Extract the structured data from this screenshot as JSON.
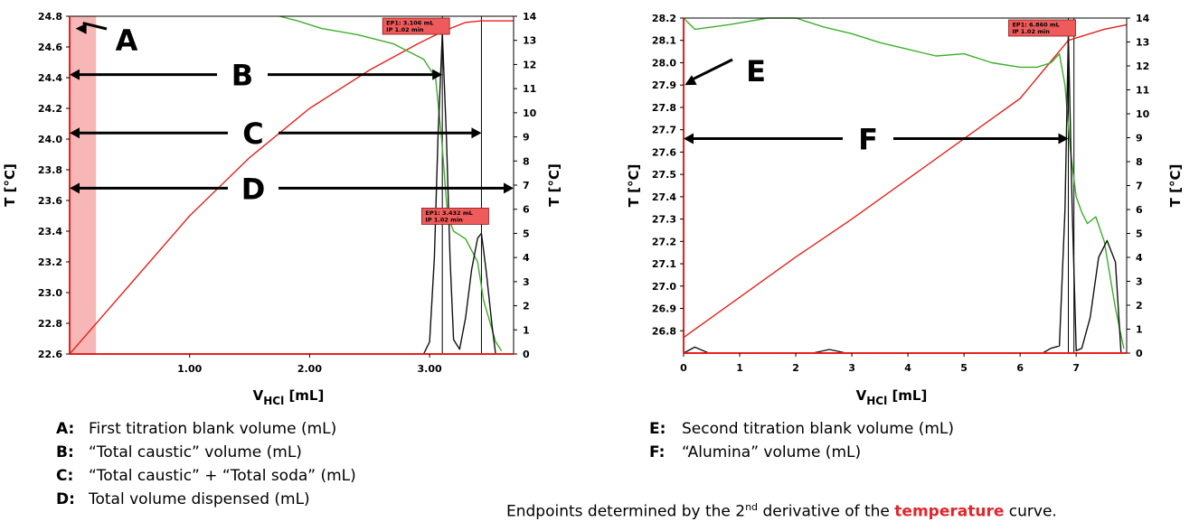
{
  "chart_data": [
    {
      "type": "line",
      "xlabel_main": "V",
      "xlabel_sub": "HCl",
      "xlabel_unit": "[mL]",
      "ylabel_left": "T [°C]",
      "ylabel_right": "T [°C]",
      "xlim": [
        0,
        3.7
      ],
      "ylim_left": [
        22.6,
        24.8
      ],
      "ylim_right": [
        0,
        14
      ],
      "x_ticks": [
        1.0,
        2.0,
        3.0
      ],
      "x_tick_labels": [
        "1.00",
        "2.00",
        "3.00"
      ],
      "y_left_ticks": [
        22.6,
        22.8,
        23.0,
        23.2,
        23.4,
        23.6,
        23.8,
        24.0,
        24.2,
        24.4,
        24.6,
        24.8
      ],
      "y_left_tick_labels": [
        "22.6",
        "22.8",
        "23.0",
        "23.2",
        "23.4",
        "23.6",
        "23.8",
        "24.0",
        "24.2",
        "24.4",
        "24.6",
        "24.8"
      ],
      "y_right_ticks": [
        0,
        1,
        2,
        3,
        4,
        5,
        6,
        7,
        8,
        9,
        10,
        11,
        12,
        13,
        14
      ],
      "y_right_tick_labels": [
        "0",
        "1",
        "2",
        "3",
        "4",
        "5",
        "6",
        "7",
        "8",
        "9",
        "10",
        "11",
        "12",
        "13",
        "14"
      ],
      "blank_region": [
        0,
        0.22
      ],
      "series": [
        {
          "color": "#e8211c",
          "axis": "left",
          "x": [
            0,
            0.5,
            1.0,
            1.5,
            2.0,
            2.5,
            2.9,
            3.106,
            3.3,
            3.432,
            3.6,
            3.7
          ],
          "y": [
            22.6,
            23.05,
            23.5,
            23.88,
            24.2,
            24.45,
            24.62,
            24.7,
            24.76,
            24.77,
            24.77,
            24.77
          ]
        },
        {
          "color": "#3dae2b",
          "axis": "left",
          "x": [
            1.75,
            1.9,
            2.1,
            2.4,
            2.7,
            2.95,
            3.05,
            3.1,
            3.15,
            3.2,
            3.3,
            3.4,
            3.45,
            3.55,
            3.6
          ],
          "y": [
            24.8,
            24.77,
            24.72,
            24.68,
            24.62,
            24.52,
            24.4,
            24.0,
            23.5,
            23.4,
            23.35,
            23.2,
            22.95,
            22.68,
            22.62
          ]
        },
        {
          "color": "#111111",
          "axis": "right",
          "x": [
            2.95,
            3.0,
            3.04,
            3.07,
            3.106,
            3.14,
            3.17,
            3.2,
            3.25,
            3.3,
            3.35,
            3.4,
            3.432,
            3.47,
            3.52,
            3.55
          ],
          "y": [
            0,
            0.5,
            4,
            9,
            13.3,
            9,
            4,
            0.6,
            0.2,
            1.5,
            3.5,
            4.8,
            5.0,
            3.5,
            1.2,
            0
          ]
        }
      ],
      "vlines": [
        3.106,
        3.432,
        3.7
      ],
      "endpoints": [
        {
          "x": 3.106,
          "ep": "EP1: 3.106 mL",
          "ip": "IP 1.02 min"
        },
        {
          "x": 3.432,
          "ep": "EP1: 3.432 mL",
          "ip": "IP 1.02 min"
        }
      ],
      "annotations": [
        {
          "letter": "A",
          "y": 24.72,
          "x_end": 0.05
        },
        {
          "letter": "B",
          "y": 24.42,
          "x_end": 3.106
        },
        {
          "letter": "C",
          "y": 24.04,
          "x_end": 3.432
        },
        {
          "letter": "D",
          "y": 23.68,
          "x_end": 3.7
        }
      ]
    },
    {
      "type": "line",
      "xlabel_main": "V",
      "xlabel_sub": "HCl",
      "xlabel_unit": "[mL]",
      "ylabel_left": "T [°C]",
      "ylabel_right": "T [°C]",
      "xlim": [
        0,
        7.9
      ],
      "ylim_left": [
        26.7,
        28.2
      ],
      "ylim_right": [
        0,
        14
      ],
      "x_ticks": [
        0,
        1,
        2,
        3,
        4,
        5,
        6,
        7
      ],
      "x_tick_labels": [
        "0",
        "1",
        "2",
        "3",
        "4",
        "5",
        "6",
        "7"
      ],
      "y_left_ticks": [
        26.8,
        26.9,
        27.0,
        27.1,
        27.2,
        27.3,
        27.4,
        27.5,
        27.6,
        27.7,
        27.8,
        27.9,
        28.0,
        28.1,
        28.2
      ],
      "y_left_tick_labels": [
        "26.8",
        "26.9",
        "27.0",
        "27.1",
        "27.2",
        "27.3",
        "27.4",
        "27.5",
        "27.6",
        "27.7",
        "27.8",
        "27.9",
        "28.0",
        "28.1",
        "28.2"
      ],
      "y_right_ticks": [
        0,
        1,
        2,
        3,
        4,
        5,
        6,
        7,
        8,
        9,
        10,
        11,
        12,
        13,
        14
      ],
      "y_right_tick_labels": [
        "0",
        "1",
        "2",
        "3",
        "4",
        "5",
        "6",
        "7",
        "8",
        "9",
        "10",
        "11",
        "12",
        "13",
        "14"
      ],
      "series": [
        {
          "color": "#e8211c",
          "axis": "left",
          "x": [
            0,
            1,
            2,
            3,
            4,
            5,
            6,
            6.86,
            7.5,
            7.9
          ],
          "y": [
            26.77,
            26.95,
            27.13,
            27.3,
            27.48,
            27.66,
            27.84,
            28.1,
            28.15,
            28.17
          ]
        },
        {
          "color": "#3dae2b",
          "axis": "left",
          "x": [
            0,
            0.2,
            0.8,
            1.5,
            2.0,
            2.5,
            3.0,
            3.5,
            4.0,
            4.5,
            5.0,
            5.5,
            6.0,
            6.3,
            6.55,
            6.7,
            6.8,
            6.9,
            7.0,
            7.1,
            7.2,
            7.35,
            7.5,
            7.7,
            7.85
          ],
          "y": [
            28.2,
            28.15,
            28.17,
            28.2,
            28.2,
            28.16,
            28.13,
            28.09,
            28.06,
            28.03,
            28.04,
            28.0,
            27.98,
            27.98,
            28.0,
            28.04,
            27.9,
            27.6,
            27.4,
            27.33,
            27.28,
            27.31,
            27.2,
            26.9,
            26.72
          ]
        },
        {
          "color": "#111111",
          "axis": "right",
          "x": [
            0,
            0.2,
            0.45,
            2.3,
            2.6,
            2.9,
            6.4,
            6.55,
            6.7,
            6.8,
            6.86,
            6.93,
            7.0,
            7.1,
            7.25,
            7.4,
            7.55,
            7.7,
            7.8
          ],
          "y": [
            0,
            0.25,
            0,
            0,
            0.15,
            0,
            0,
            0.2,
            0.3,
            6,
            13.3,
            6,
            0.1,
            0.2,
            1.5,
            4.0,
            4.7,
            3.8,
            0
          ]
        }
      ],
      "vlines": [
        6.86,
        6.96
      ],
      "endpoints": [
        {
          "x": 6.86,
          "ep": "EP1: 6.860 mL",
          "ip": "IP 1.02 min"
        }
      ],
      "annotations": [
        {
          "letter": "E",
          "y": 27.9,
          "x_end": 0.02
        },
        {
          "letter": "F",
          "y": 27.66,
          "x_end": 6.86
        }
      ]
    }
  ],
  "legend_left": [
    {
      "key": "A:",
      "text": "First titration blank volume (mL)"
    },
    {
      "key": "B:",
      "text": "“Total caustic” volume (mL)"
    },
    {
      "key": "C:",
      "text": "“Total caustic” + “Total soda” (mL)"
    },
    {
      "key": "D:",
      "text": "Total volume dispensed (mL)"
    }
  ],
  "legend_right": [
    {
      "key": "E:",
      "text": "Second titration blank volume (mL)"
    },
    {
      "key": "F:",
      "text": "“Alumina” volume (mL)"
    }
  ],
  "note": {
    "before": "Endpoints determined by the 2",
    "sup": "nd",
    "middle": " derivative of the ",
    "highlight": "temperature",
    "after": " curve."
  },
  "colors": {
    "temperature": "#e8211c",
    "derivative1": "#3dae2b",
    "derivative2": "#111111",
    "blank_band": "#f7b7b7",
    "endpoint_box": "#ef5b5b"
  }
}
